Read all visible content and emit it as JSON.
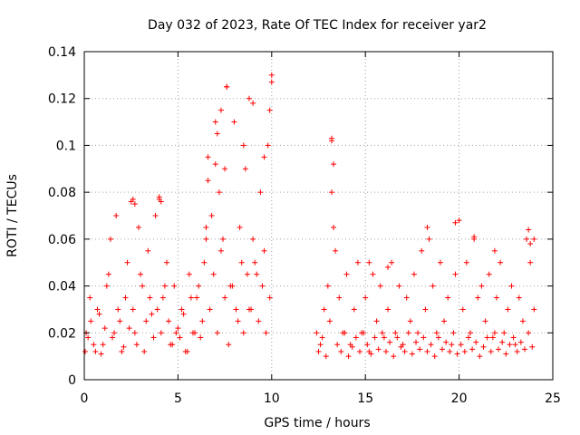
{
  "chart_data": {
    "type": "scatter",
    "title": "Day 032 of 2023, Rate Of TEC Index for receiver yar2",
    "xlabel": "GPS time / hours",
    "ylabel": "ROTI / TECUs",
    "xlim": [
      0,
      25
    ],
    "ylim": [
      0,
      0.14
    ],
    "xticks": [
      0,
      5,
      10,
      15,
      20,
      25
    ],
    "yticks": [
      0,
      0.02,
      0.04,
      0.06,
      0.08,
      0.1,
      0.12,
      0.14
    ],
    "xtick_labels": [
      "0",
      "5",
      "10",
      "15",
      "20",
      "25"
    ],
    "ytick_labels": [
      "0",
      "0.02",
      "0.04",
      "0.06",
      "0.08",
      "0.1",
      "0.12",
      "0.14"
    ],
    "grid": true,
    "marker": "+",
    "color": "#ff0000",
    "series": [
      {
        "name": "yar2",
        "x": [
          0.05,
          0.2,
          0.35,
          0.5,
          0.7,
          0.9,
          1.1,
          1.3,
          1.4,
          1.5,
          1.7,
          1.9,
          2.1,
          2.3,
          2.5,
          2.6,
          2.7,
          2.9,
          3.1,
          3.2,
          3.4,
          3.6,
          3.8,
          4.0,
          4.1,
          4.2,
          4.4,
          4.6,
          4.8,
          5.0,
          5.2,
          5.4,
          5.6,
          5.8,
          6.0,
          6.2,
          6.4,
          6.6,
          6.8,
          7.0,
          7.2,
          7.4,
          7.6,
          7.8,
          8.0,
          8.2,
          8.4,
          8.6,
          8.8,
          9.0,
          9.2,
          9.4,
          9.6,
          9.8,
          10.0,
          0.1,
          0.3,
          0.6,
          0.8,
          1.0,
          1.2,
          1.6,
          1.8,
          2.0,
          2.2,
          2.4,
          2.8,
          3.0,
          3.3,
          3.5,
          3.7,
          3.9,
          4.3,
          4.5,
          4.7,
          4.9,
          5.1,
          5.3,
          5.5,
          5.7,
          5.9,
          6.1,
          6.3,
          6.5,
          6.7,
          6.9,
          7.1,
          7.3,
          7.5,
          7.7,
          7.9,
          8.1,
          8.3,
          8.5,
          8.7,
          8.9,
          9.1,
          9.3,
          9.5,
          9.7,
          9.9,
          7.0,
          7.1,
          7.3,
          7.5,
          7.6,
          8.5,
          8.8,
          9.9,
          10.0,
          6.5,
          6.6,
          9.0,
          9.6,
          2.6,
          4.0,
          4.1,
          2.7,
          12.4,
          12.6,
          12.8,
          13.0,
          13.1,
          13.2,
          13.3,
          13.4,
          13.6,
          13.8,
          14.0,
          14.2,
          14.4,
          14.6,
          14.8,
          15.0,
          15.2,
          15.4,
          15.6,
          15.8,
          16.0,
          16.2,
          16.4,
          16.6,
          16.8,
          17.0,
          17.2,
          17.4,
          17.6,
          17.8,
          18.0,
          18.2,
          18.4,
          18.6,
          18.8,
          19.0,
          19.2,
          19.4,
          19.6,
          19.8,
          20.0,
          20.2,
          20.4,
          20.6,
          20.8,
          21.0,
          21.2,
          21.4,
          21.6,
          21.8,
          22.0,
          22.2,
          22.4,
          22.6,
          22.8,
          23.0,
          23.2,
          23.4,
          23.6,
          23.8,
          24.0,
          12.5,
          12.7,
          12.9,
          13.5,
          13.7,
          13.9,
          14.1,
          14.3,
          14.5,
          14.7,
          14.9,
          15.1,
          15.3,
          15.5,
          15.7,
          15.9,
          16.1,
          16.3,
          16.5,
          16.7,
          16.9,
          17.1,
          17.3,
          17.5,
          17.7,
          17.9,
          18.1,
          18.3,
          18.5,
          18.7,
          18.9,
          19.1,
          19.3,
          19.5,
          19.7,
          19.9,
          20.1,
          20.3,
          20.5,
          20.7,
          20.9,
          21.1,
          21.3,
          21.5,
          21.7,
          21.9,
          22.1,
          22.3,
          22.5,
          22.7,
          22.9,
          23.1,
          23.3,
          23.5,
          23.7,
          23.9,
          13.2,
          13.3,
          13.2,
          18.3,
          19.8,
          20.8,
          21.9,
          23.7,
          23.8,
          24.0,
          16.2,
          15.2
        ],
        "y": [
          0.012,
          0.018,
          0.025,
          0.015,
          0.03,
          0.011,
          0.022,
          0.045,
          0.06,
          0.018,
          0.07,
          0.025,
          0.014,
          0.05,
          0.076,
          0.03,
          0.02,
          0.065,
          0.04,
          0.012,
          0.055,
          0.028,
          0.07,
          0.077,
          0.02,
          0.035,
          0.05,
          0.015,
          0.04,
          0.022,
          0.03,
          0.012,
          0.045,
          0.02,
          0.035,
          0.018,
          0.05,
          0.095,
          0.07,
          0.11,
          0.08,
          0.06,
          0.125,
          0.04,
          0.11,
          0.025,
          0.05,
          0.09,
          0.03,
          0.06,
          0.045,
          0.08,
          0.055,
          0.1,
          0.127,
          0.02,
          0.035,
          0.012,
          0.028,
          0.015,
          0.04,
          0.02,
          0.03,
          0.012,
          0.035,
          0.022,
          0.015,
          0.045,
          0.025,
          0.035,
          0.018,
          0.03,
          0.04,
          0.025,
          0.015,
          0.02,
          0.018,
          0.028,
          0.012,
          0.035,
          0.02,
          0.04,
          0.025,
          0.06,
          0.03,
          0.045,
          0.02,
          0.055,
          0.035,
          0.015,
          0.04,
          0.03,
          0.065,
          0.02,
          0.045,
          0.03,
          0.05,
          0.025,
          0.04,
          0.02,
          0.035,
          0.092,
          0.105,
          0.115,
          0.09,
          0.125,
          0.1,
          0.12,
          0.115,
          0.13,
          0.065,
          0.085,
          0.118,
          0.095,
          0.077,
          0.078,
          0.076,
          0.075,
          0.02,
          0.015,
          0.03,
          0.04,
          0.025,
          0.103,
          0.065,
          0.055,
          0.035,
          0.02,
          0.045,
          0.015,
          0.03,
          0.05,
          0.02,
          0.035,
          0.012,
          0.045,
          0.025,
          0.04,
          0.018,
          0.03,
          0.05,
          0.02,
          0.04,
          0.015,
          0.035,
          0.025,
          0.045,
          0.02,
          0.055,
          0.03,
          0.06,
          0.04,
          0.02,
          0.05,
          0.025,
          0.035,
          0.015,
          0.045,
          0.068,
          0.03,
          0.05,
          0.02,
          0.06,
          0.035,
          0.04,
          0.025,
          0.045,
          0.018,
          0.035,
          0.05,
          0.02,
          0.03,
          0.04,
          0.015,
          0.035,
          0.025,
          0.06,
          0.05,
          0.03,
          0.012,
          0.018,
          0.01,
          0.015,
          0.012,
          0.02,
          0.01,
          0.014,
          0.018,
          0.012,
          0.02,
          0.015,
          0.011,
          0.018,
          0.013,
          0.02,
          0.012,
          0.016,
          0.01,
          0.018,
          0.014,
          0.012,
          0.02,
          0.011,
          0.016,
          0.013,
          0.018,
          0.012,
          0.015,
          0.01,
          0.018,
          0.013,
          0.016,
          0.012,
          0.02,
          0.011,
          0.015,
          0.012,
          0.018,
          0.013,
          0.016,
          0.01,
          0.014,
          0.018,
          0.012,
          0.02,
          0.013,
          0.016,
          0.011,
          0.015,
          0.018,
          0.012,
          0.016,
          0.013,
          0.02,
          0.014,
          0.102,
          0.092,
          0.08,
          0.065,
          0.067,
          0.061,
          0.055,
          0.064,
          0.058,
          0.06,
          0.048,
          0.05
        ]
      }
    ]
  }
}
